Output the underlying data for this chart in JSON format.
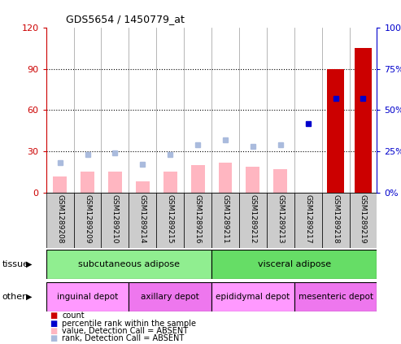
{
  "title": "GDS5654 / 1450779_at",
  "samples": [
    "GSM1289208",
    "GSM1289209",
    "GSM1289210",
    "GSM1289214",
    "GSM1289215",
    "GSM1289216",
    "GSM1289211",
    "GSM1289212",
    "GSM1289213",
    "GSM1289217",
    "GSM1289218",
    "GSM1289219"
  ],
  "count_values": [
    0,
    0,
    0,
    0,
    0,
    0,
    0,
    0,
    0,
    0,
    90,
    105
  ],
  "percentile_rank": [
    null,
    null,
    null,
    null,
    null,
    null,
    null,
    null,
    null,
    42,
    57,
    57
  ],
  "value_absent": [
    12,
    15,
    15,
    8,
    15,
    20,
    22,
    19,
    17,
    0,
    0,
    0
  ],
  "rank_absent": [
    18,
    23,
    24,
    17,
    23,
    29,
    32,
    28,
    29,
    0,
    0,
    0
  ],
  "ylim_left": [
    0,
    120
  ],
  "ylim_right": [
    0,
    100
  ],
  "yticks_left": [
    0,
    30,
    60,
    90,
    120
  ],
  "yticks_right": [
    0,
    25,
    50,
    75,
    100
  ],
  "yticklabels_left": [
    "0",
    "30",
    "60",
    "90",
    "120"
  ],
  "yticklabels_right": [
    "0%",
    "25%",
    "50%",
    "75%",
    "100%"
  ],
  "tissue_groups": [
    {
      "label": "subcutaneous adipose",
      "start": 0,
      "end": 6,
      "color": "#90EE90"
    },
    {
      "label": "visceral adipose",
      "start": 6,
      "end": 12,
      "color": "#66DD66"
    }
  ],
  "other_groups": [
    {
      "label": "inguinal depot",
      "start": 0,
      "end": 3,
      "color": "#FF99FF"
    },
    {
      "label": "axillary depot",
      "start": 3,
      "end": 6,
      "color": "#EE77EE"
    },
    {
      "label": "epididymal depot",
      "start": 6,
      "end": 9,
      "color": "#FF99FF"
    },
    {
      "label": "mesenteric depot",
      "start": 9,
      "end": 12,
      "color": "#EE77EE"
    }
  ],
  "color_count": "#CC0000",
  "color_rank": "#0000CC",
  "color_value_absent": "#FFB6C1",
  "color_rank_absent": "#AABBDD",
  "color_axis_left": "#CC0000",
  "color_axis_right": "#0000CC",
  "bg_color": "#FFFFFF",
  "grid_color": "#000000",
  "sample_box_color": "#CCCCCC"
}
